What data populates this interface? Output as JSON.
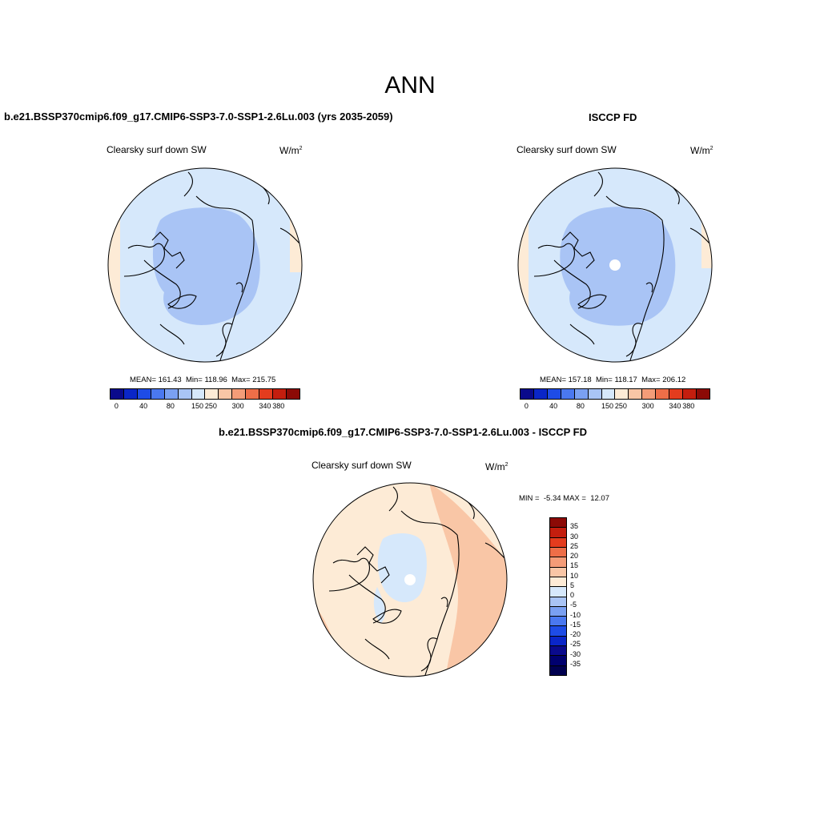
{
  "title": "ANN",
  "panels": {
    "model": {
      "title": "b.e21.BSSP370cmip6.f09_g17.CMIP6-SSP3-7.0-SSP1-2.6Lu.003 (yrs 2035-2059)",
      "variable": "Clearsky surf down SW",
      "units_base": "W/m",
      "units_exp": "2",
      "stats": "MEAN= 161.43  Min= 118.96  Max= 215.75"
    },
    "obs": {
      "title": "ISCCP FD",
      "variable": "Clearsky surf down SW",
      "units_base": "W/m",
      "units_exp": "2",
      "stats": "MEAN= 157.18  Min= 118.17  Max= 206.12"
    },
    "diff": {
      "title": "b.e21.BSSP370cmip6.f09_g17.CMIP6-SSP3-7.0-SSP1-2.6Lu.003 - ISCCP FD",
      "variable": "Clearsky surf down SW",
      "units_base": "W/m",
      "units_exp": "2",
      "minmax": "MIN =  -5.34 MAX =  12.07"
    }
  },
  "colorbars": {
    "abs": {
      "colors": [
        "#0a0a8c",
        "#0a26c8",
        "#1e4ce6",
        "#4a78f0",
        "#7aa0f2",
        "#a9c4f5",
        "#d6e8fb",
        "#fdebd6",
        "#f9c6a6",
        "#f49c78",
        "#ee6e48",
        "#e43c1e",
        "#c41e0e",
        "#8c0a06"
      ],
      "tick_labels": [
        "0",
        "40",
        "80",
        "150",
        "250",
        "300",
        "340",
        "380"
      ]
    },
    "diff": {
      "colors": [
        "#8c0a06",
        "#c41e0e",
        "#e43c1e",
        "#ee6e48",
        "#f49c78",
        "#f9c6a6",
        "#fdebd6",
        "#d6e8fb",
        "#a9c4f5",
        "#7aa0f2",
        "#4a78f0",
        "#1e4ce6",
        "#0a26c8",
        "#0a0a8c",
        "#00006e",
        "#000050"
      ],
      "tick_labels": [
        "35",
        "30",
        "25",
        "20",
        "15",
        "10",
        "5",
        "0",
        "-5",
        "-10",
        "-15",
        "-20",
        "-25",
        "-30",
        "-35"
      ]
    }
  },
  "colors": {
    "map_light_blue": "#d6e8fb",
    "map_mid_blue": "#a9c4f5",
    "map_peach": "#fdebd6",
    "map_salmon": "#f9c6a6",
    "map_white": "#ffffff"
  }
}
